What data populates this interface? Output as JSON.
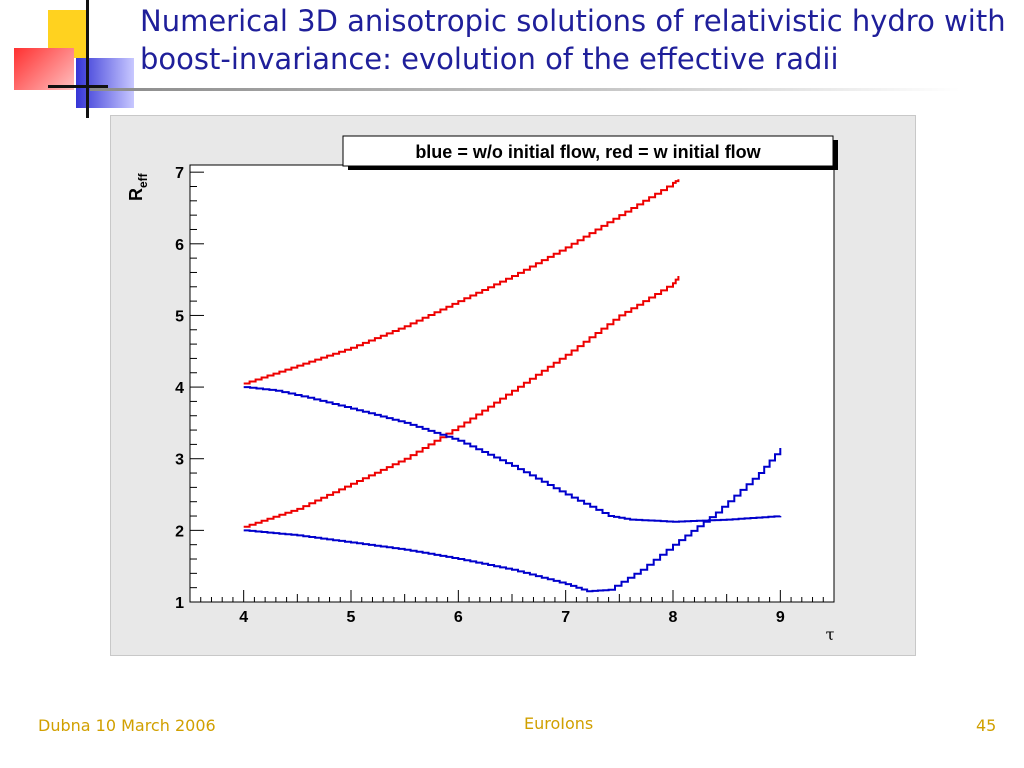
{
  "slide": {
    "title": "Numerical 3D anisotropic solutions of relativistic hydro with boost-invariance: evolution of the effective radii",
    "footer_left": "Dubna 10 March 2006",
    "footer_center": "EuroIons",
    "footer_right": "45"
  },
  "chart_data": {
    "type": "line",
    "legend_text": "blue = w/o initial flow, red = w initial flow",
    "legend_placement": "top-right",
    "xlabel": "τ",
    "ylabel": "R",
    "ylabel_sub": "eff",
    "xlim": [
      3.5,
      9.5
    ],
    "ylim": [
      1,
      7.1
    ],
    "xticks": [
      4,
      5,
      6,
      7,
      8,
      9
    ],
    "yticks": [
      1,
      2,
      3,
      4,
      5,
      6,
      7
    ],
    "grid": false,
    "colors": {
      "blue": "#0000cc",
      "red": "#ee0000",
      "frame_bg": "#e8e8e8",
      "plot_bg": "#ffffff"
    },
    "series": [
      {
        "color": "red",
        "x": [
          4.0,
          4.5,
          5.0,
          5.5,
          6.0,
          6.5,
          7.0,
          7.5,
          8.0,
          8.05
        ],
        "y": [
          4.05,
          4.3,
          4.55,
          4.85,
          5.2,
          5.55,
          5.95,
          6.4,
          6.85,
          6.9
        ]
      },
      {
        "color": "red",
        "x": [
          4.0,
          4.5,
          5.0,
          5.5,
          6.0,
          6.5,
          7.0,
          7.5,
          8.0,
          8.05
        ],
        "y": [
          2.05,
          2.3,
          2.65,
          3.0,
          3.45,
          3.95,
          4.45,
          5.0,
          5.45,
          5.55
        ]
      },
      {
        "color": "blue",
        "x": [
          4.0,
          4.3,
          4.6,
          5.0,
          5.5,
          6.0,
          6.5,
          7.0,
          7.4,
          7.6,
          8.0,
          8.5,
          9.0
        ],
        "y": [
          4.0,
          3.95,
          3.85,
          3.7,
          3.5,
          3.25,
          2.9,
          2.5,
          2.2,
          2.15,
          2.12,
          2.15,
          2.2
        ]
      },
      {
        "color": "blue",
        "x": [
          4.0,
          4.5,
          5.0,
          5.5,
          6.0,
          6.5,
          7.0,
          7.2,
          7.4,
          7.7,
          8.0,
          8.4,
          8.8,
          9.0
        ],
        "y": [
          2.0,
          1.93,
          1.83,
          1.73,
          1.6,
          1.45,
          1.25,
          1.15,
          1.17,
          1.45,
          1.8,
          2.25,
          2.8,
          3.15
        ]
      }
    ]
  }
}
